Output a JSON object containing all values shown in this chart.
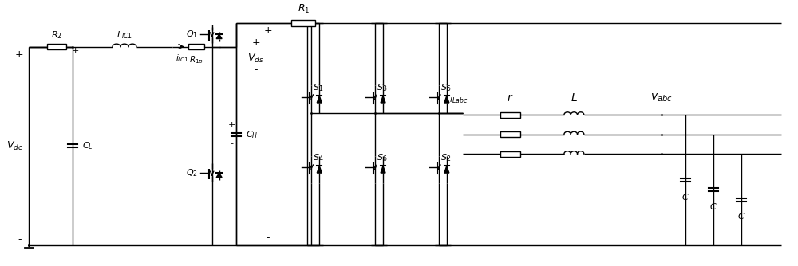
{
  "bg_color": "#ffffff",
  "line_color": "#000000",
  "gray_color": "#888888",
  "fig_width": 10.0,
  "fig_height": 3.34,
  "dpi": 100
}
